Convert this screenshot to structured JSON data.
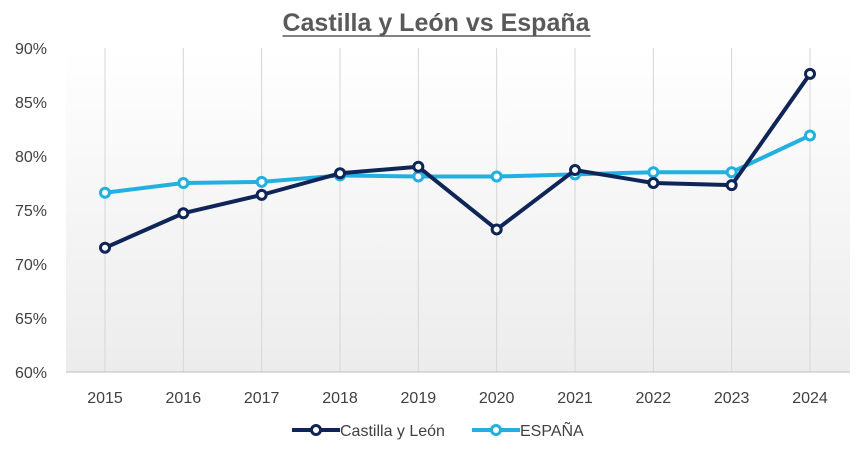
{
  "chart_data": {
    "type": "line",
    "title": "Castilla y León vs España",
    "xlabel": "",
    "ylabel": "",
    "categories": [
      "2015",
      "2016",
      "2017",
      "2018",
      "2019",
      "2020",
      "2021",
      "2022",
      "2023",
      "2024"
    ],
    "y_ticks": [
      "60%",
      "65%",
      "70%",
      "75%",
      "80%",
      "85%",
      "90%"
    ],
    "ylim": [
      60,
      90
    ],
    "y_unit": "%",
    "grid": "vertical",
    "legend_position": "bottom",
    "series": [
      {
        "name": "Castilla y León",
        "color": "#0f2557",
        "values": [
          71.5,
          74.7,
          76.4,
          78.4,
          79.0,
          73.2,
          78.7,
          77.5,
          77.3,
          87.6
        ]
      },
      {
        "name": "ESPAÑA",
        "color": "#22b0e0",
        "values": [
          76.6,
          77.5,
          77.6,
          78.2,
          78.1,
          78.1,
          78.3,
          78.5,
          78.5,
          81.9
        ]
      }
    ]
  }
}
